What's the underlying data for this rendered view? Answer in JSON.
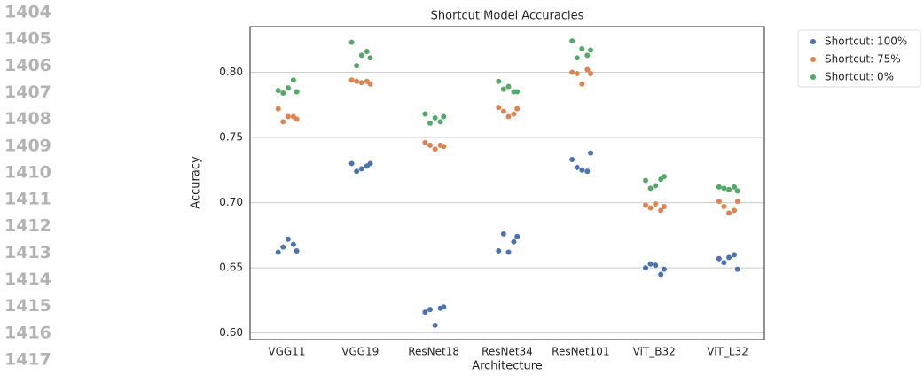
{
  "line_numbers": [
    "1404",
    "1405",
    "1406",
    "1407",
    "1408",
    "1409",
    "1410",
    "1411",
    "1412",
    "1413",
    "1414",
    "1415",
    "1416",
    "1417"
  ],
  "chart_data": {
    "type": "strip",
    "title": "Shortcut Model Accuracies",
    "x_label": "Architecture",
    "y_label": "Accuracy",
    "categories": [
      "VGG11",
      "VGG19",
      "ResNet18",
      "ResNet34",
      "ResNet101",
      "ViT_B32",
      "ViT_L32"
    ],
    "ylim": [
      0.595,
      0.835
    ],
    "yticks": [
      {
        "value": 0.6,
        "label": "0.60"
      },
      0.65,
      {
        "value": 0.7,
        "label": "0.70"
      },
      0.75,
      {
        "value": 0.8,
        "label": "0.80"
      }
    ],
    "grid": true,
    "legend": "outside upper right",
    "series": [
      {
        "name": "Shortcut: 100%",
        "color": "#4c72b0",
        "values": [
          [
            0.662,
            0.666,
            0.672,
            0.668,
            0.663
          ],
          [
            0.73,
            0.724,
            0.726,
            0.728,
            0.73
          ],
          [
            0.616,
            0.618,
            0.606,
            0.619,
            0.62
          ],
          [
            0.663,
            0.676,
            0.662,
            0.67,
            0.674
          ],
          [
            0.733,
            0.727,
            0.725,
            0.724,
            0.738
          ],
          [
            0.65,
            0.653,
            0.652,
            0.645,
            0.649
          ],
          [
            0.657,
            0.654,
            0.658,
            0.66,
            0.649
          ]
        ]
      },
      {
        "name": "Shortcut: 75%",
        "color": "#dd8452",
        "values": [
          [
            0.772,
            0.762,
            0.766,
            0.766,
            0.764
          ],
          [
            0.794,
            0.793,
            0.792,
            0.793,
            0.791
          ],
          [
            0.746,
            0.744,
            0.741,
            0.744,
            0.743
          ],
          [
            0.773,
            0.77,
            0.766,
            0.768,
            0.772
          ],
          [
            0.8,
            0.799,
            0.791,
            0.802,
            0.799
          ],
          [
            0.698,
            0.696,
            0.699,
            0.694,
            0.697
          ],
          [
            0.701,
            0.697,
            0.692,
            0.694,
            0.701
          ]
        ]
      },
      {
        "name": "Shortcut: 0%",
        "color": "#55a868",
        "values": [
          [
            0.786,
            0.784,
            0.788,
            0.794,
            0.785
          ],
          [
            0.823,
            0.805,
            0.813,
            0.816,
            0.811
          ],
          [
            0.768,
            0.761,
            0.765,
            0.762,
            0.766
          ],
          [
            0.793,
            0.787,
            0.789,
            0.785,
            0.785
          ],
          [
            0.824,
            0.811,
            0.818,
            0.813,
            0.817
          ],
          [
            0.717,
            0.711,
            0.713,
            0.718,
            0.72
          ],
          [
            0.712,
            0.711,
            0.71,
            0.712,
            0.709
          ]
        ]
      }
    ]
  }
}
